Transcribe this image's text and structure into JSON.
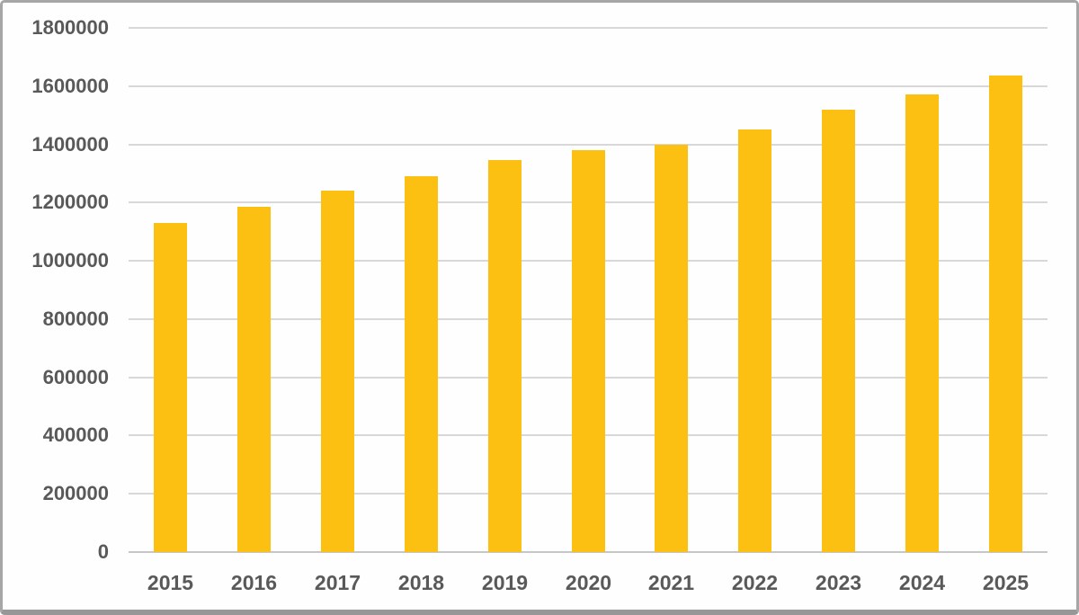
{
  "chart_data": {
    "type": "bar",
    "title": "",
    "xlabel": "",
    "ylabel": "",
    "categories": [
      "2015",
      "2016",
      "2017",
      "2018",
      "2019",
      "2020",
      "2021",
      "2022",
      "2023",
      "2024",
      "2025"
    ],
    "values": [
      1130000,
      1185000,
      1240000,
      1290000,
      1345000,
      1380000,
      1400000,
      1450000,
      1520000,
      1570000,
      1635000
    ],
    "ylim": [
      0,
      1800000
    ],
    "ytick_step": 200000,
    "ytick_labels": [
      "0",
      "200000",
      "400000",
      "600000",
      "800000",
      "1000000",
      "1200000",
      "1400000",
      "1600000",
      "1800000"
    ],
    "grid": true,
    "legend": false,
    "bar_color": "#FCC013",
    "gridline_color": "#D8D8D8",
    "axis_line_color": "#C6C6C6",
    "tick_label_color": "#595959"
  }
}
